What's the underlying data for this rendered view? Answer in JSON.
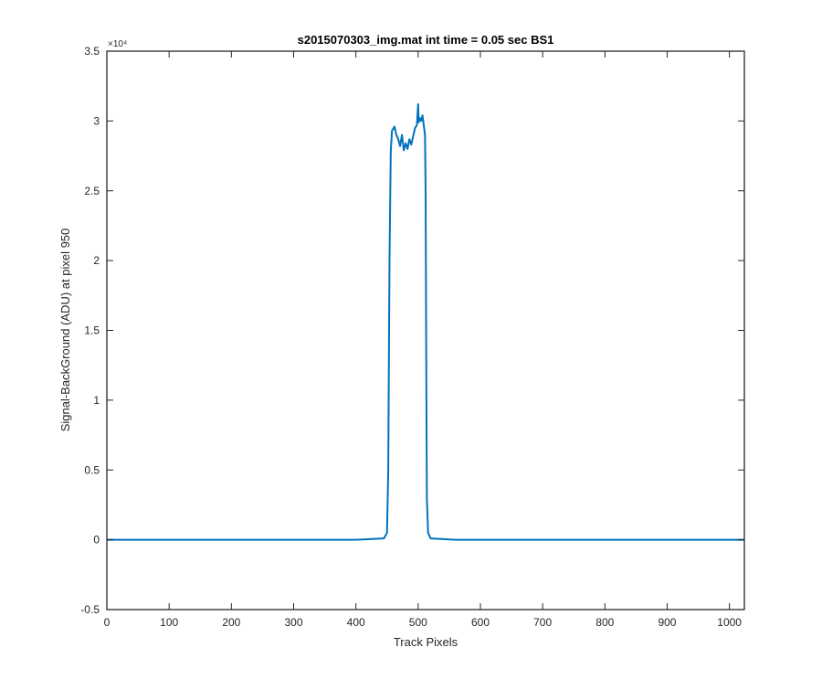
{
  "chart_data": {
    "type": "line",
    "title": "s2015070303_img.mat int time = 0.05 sec   BS1",
    "xlabel": "Track Pixels",
    "ylabel": "Signal-BackGround (ADU) at pixel 950",
    "xlim": [
      0,
      1024
    ],
    "ylim": [
      -0.5,
      3.5
    ],
    "y_multiplier_label": "×10⁴",
    "xticks": [
      0,
      100,
      200,
      300,
      400,
      500,
      600,
      700,
      800,
      900,
      1000
    ],
    "xtick_labels": [
      "0",
      "100",
      "200",
      "300",
      "400",
      "500",
      "600",
      "700",
      "800",
      "900",
      "1000"
    ],
    "yticks": [
      -0.5,
      0,
      0.5,
      1,
      1.5,
      2,
      2.5,
      3,
      3.5
    ],
    "ytick_labels": [
      "-0.5",
      "0",
      "0.5",
      "1",
      "1.5",
      "2",
      "2.5",
      "3",
      "3.5"
    ],
    "grid": false,
    "line_color": "#0072bd",
    "axis_color": "#262626",
    "series": [
      {
        "x": [
          0,
          100,
          200,
          300,
          400,
          445,
          450,
          452,
          454,
          456,
          458,
          462,
          465,
          468,
          471,
          474,
          477,
          480,
          483,
          486,
          489,
          492,
          495,
          498,
          500,
          501,
          503,
          505,
          507,
          509,
          511,
          512,
          513,
          514,
          516,
          520,
          560,
          600,
          700,
          800,
          900,
          1024
        ],
        "y": [
          0,
          0,
          0,
          0,
          0,
          0.01,
          0.05,
          0.5,
          2.0,
          2.78,
          2.93,
          2.96,
          2.9,
          2.87,
          2.82,
          2.9,
          2.79,
          2.84,
          2.8,
          2.87,
          2.83,
          2.89,
          2.95,
          2.97,
          3.12,
          2.99,
          3.02,
          3.0,
          3.04,
          2.97,
          2.9,
          2.5,
          1.3,
          0.3,
          0.05,
          0.01,
          0,
          0,
          0,
          0,
          0,
          0
        ]
      }
    ]
  }
}
